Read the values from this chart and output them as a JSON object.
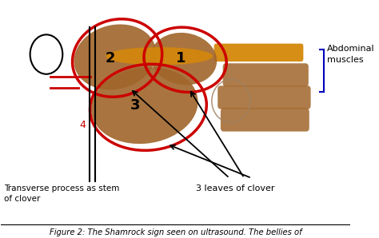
{
  "fig_width": 4.74,
  "fig_height": 2.98,
  "dpi": 100,
  "bg_color": "#ffffff",
  "brown_color": "#a0652a",
  "red_color": "#cc0000",
  "black_color": "#000000",
  "blue_color": "#0000bb",
  "orange_color": "#d4880a",
  "figure_caption": "Figure 2: The Shamrock sign seen on ultrasound. The bellies of",
  "label_abdominal": "Abdominal\nmuscles",
  "label_transverse": "Transverse process as stem\nof clover",
  "label_leaves": "3 leaves of clover",
  "label_1": "1",
  "label_2": "2",
  "label_3": "3",
  "label_4": "4"
}
